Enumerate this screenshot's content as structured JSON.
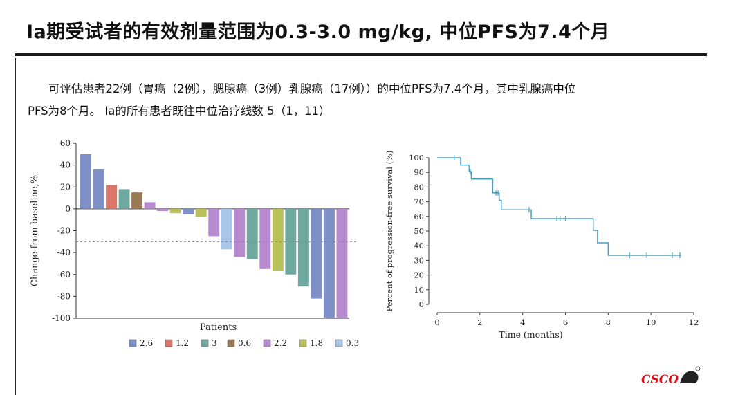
{
  "slide": {
    "title": "Ia期受试者的有效剂量范围为0.3-3.0 mg/kg, 中位PFS为7.4个月",
    "paragraph_line1": "可评估患者22例（胃癌（2例），腮腺癌（3例）乳腺癌（17例））的中位PFS为7.4个月，其中乳腺癌中位",
    "paragraph_line2": "PFS为8个月。 Ia的所有患者既往中位治疗线数 5（1，11）",
    "logo_text": "CSCO"
  },
  "chart_data": [
    {
      "type": "bar",
      "xlabel": "Patients",
      "ylabel": "Change from baseline,%",
      "ylim": [
        -100,
        60
      ],
      "yticks": [
        "60",
        "40",
        "20",
        "0",
        "-20",
        "-40",
        "-60",
        "-80",
        "-100"
      ],
      "reference_line": -30,
      "legend_position": "bottom",
      "legend": [
        {
          "label": "2.6",
          "color": "#7f8fc8"
        },
        {
          "label": "1.2",
          "color": "#d9776b"
        },
        {
          "label": "3",
          "color": "#6fa89e"
        },
        {
          "label": "0.6",
          "color": "#9a7a55"
        },
        {
          "label": "2.2",
          "color": "#b88ad0"
        },
        {
          "label": "1.8",
          "color": "#b9bf5a"
        },
        {
          "label": "0.3",
          "color": "#a7c6e8"
        }
      ],
      "bars": [
        {
          "value": 50,
          "dose": "2.6",
          "color": "#7f8fc8"
        },
        {
          "value": 36,
          "dose": "2.6",
          "color": "#7f8fc8"
        },
        {
          "value": 22,
          "dose": "1.2",
          "color": "#d9776b"
        },
        {
          "value": 18,
          "dose": "3",
          "color": "#6fa89e"
        },
        {
          "value": 15,
          "dose": "0.6",
          "color": "#9a7a55"
        },
        {
          "value": 6,
          "dose": "2.2",
          "color": "#b88ad0"
        },
        {
          "value": -2,
          "dose": "2.2",
          "color": "#b88ad0"
        },
        {
          "value": -4,
          "dose": "1.8",
          "color": "#b9bf5a"
        },
        {
          "value": -5,
          "dose": "2.6",
          "color": "#7f8fc8"
        },
        {
          "value": -7,
          "dose": "1.8",
          "color": "#b9bf5a"
        },
        {
          "value": -25,
          "dose": "2.2",
          "color": "#b88ad0"
        },
        {
          "value": -37,
          "dose": "0.3",
          "color": "#a7c6e8"
        },
        {
          "value": -44,
          "dose": "2.2",
          "color": "#b88ad0"
        },
        {
          "value": -46,
          "dose": "3",
          "color": "#6fa89e"
        },
        {
          "value": -55,
          "dose": "2.2",
          "color": "#b88ad0"
        },
        {
          "value": -57,
          "dose": "1.8",
          "color": "#b9bf5a"
        },
        {
          "value": -60,
          "dose": "3",
          "color": "#6fa89e"
        },
        {
          "value": -71,
          "dose": "3",
          "color": "#6fa89e"
        },
        {
          "value": -82,
          "dose": "2.6",
          "color": "#7f8fc8"
        },
        {
          "value": -100,
          "dose": "2.6",
          "color": "#7f8fc8"
        },
        {
          "value": -100,
          "dose": "2.2",
          "color": "#b88ad0"
        }
      ]
    },
    {
      "type": "line",
      "xlabel": "Time (months)",
      "ylabel": "Percent of progression-free survival (%)",
      "xlim": [
        0,
        12
      ],
      "ylim": [
        0,
        100
      ],
      "xticks": [
        "0",
        "2",
        "4",
        "6",
        "8",
        "10",
        "12"
      ],
      "yticks": [
        "100",
        "90",
        "80",
        "70",
        "60",
        "50",
        "40",
        "30",
        "20",
        "10",
        "0"
      ],
      "color": "#4aa0bf",
      "steps": [
        {
          "x": 0,
          "y": 100
        },
        {
          "x": 1.1,
          "y": 95
        },
        {
          "x": 1.5,
          "y": 90.5
        },
        {
          "x": 1.6,
          "y": 85.5
        },
        {
          "x": 2.6,
          "y": 76
        },
        {
          "x": 2.9,
          "y": 71
        },
        {
          "x": 3.0,
          "y": 64.5
        },
        {
          "x": 4.4,
          "y": 58.5
        },
        {
          "x": 7.3,
          "y": 50.5
        },
        {
          "x": 7.5,
          "y": 42
        },
        {
          "x": 8.0,
          "y": 33.5
        },
        {
          "x": 11.4,
          "y": 33.5
        }
      ],
      "censored": [
        {
          "x": 0.8,
          "y": 100
        },
        {
          "x": 1.55,
          "y": 90.5
        },
        {
          "x": 2.75,
          "y": 76
        },
        {
          "x": 2.85,
          "y": 76
        },
        {
          "x": 4.3,
          "y": 64.5
        },
        {
          "x": 5.6,
          "y": 58.5
        },
        {
          "x": 5.75,
          "y": 58.5
        },
        {
          "x": 6.0,
          "y": 58.5
        },
        {
          "x": 9.0,
          "y": 33.5
        },
        {
          "x": 9.8,
          "y": 33.5
        },
        {
          "x": 11.0,
          "y": 33.5
        },
        {
          "x": 11.35,
          "y": 33.5
        }
      ]
    }
  ]
}
